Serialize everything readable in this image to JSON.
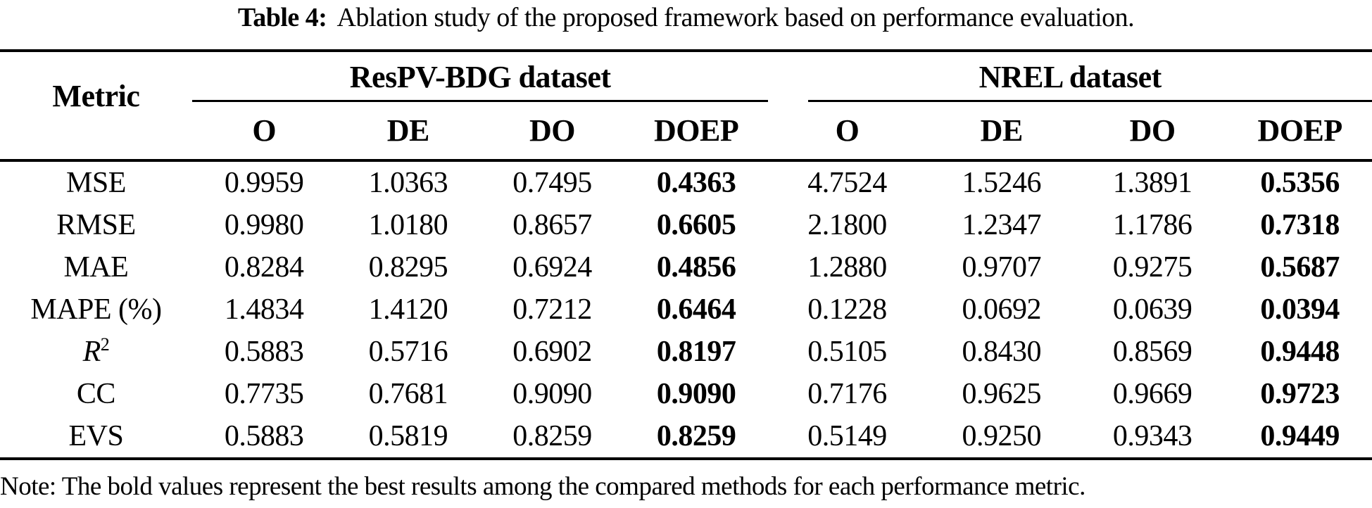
{
  "caption": {
    "label": "Table 4:",
    "text": "Ablation study of the proposed framework based on performance evaluation."
  },
  "table": {
    "metric_header": "Metric",
    "groups": [
      {
        "label": "ResPV-BDG dataset",
        "columns": [
          "O",
          "DE",
          "DO",
          "DOEP"
        ]
      },
      {
        "label": "NREL dataset",
        "columns": [
          "O",
          "DE",
          "DO",
          "DOEP"
        ]
      }
    ],
    "bold_columns": [
      3,
      7
    ],
    "rows": [
      {
        "metric": "MSE",
        "values": [
          "0.9959",
          "1.0363",
          "0.7495",
          "0.4363",
          "4.7524",
          "1.5246",
          "1.3891",
          "0.5356"
        ]
      },
      {
        "metric": "RMSE",
        "values": [
          "0.9980",
          "1.0180",
          "0.8657",
          "0.6605",
          "2.1800",
          "1.2347",
          "1.1786",
          "0.7318"
        ]
      },
      {
        "metric": "MAE",
        "values": [
          "0.8284",
          "0.8295",
          "0.6924",
          "0.4856",
          "1.2880",
          "0.9707",
          "0.9275",
          "0.5687"
        ]
      },
      {
        "metric": "MAPE (%)",
        "values": [
          "1.4834",
          "1.4120",
          "0.7212",
          "0.6464",
          "0.1228",
          "0.0692",
          "0.0639",
          "0.0394"
        ]
      },
      {
        "metric": "R",
        "metric_sup": "2",
        "metric_italic": true,
        "values": [
          "0.5883",
          "0.5716",
          "0.6902",
          "0.8197",
          "0.5105",
          "0.8430",
          "0.8569",
          "0.9448"
        ]
      },
      {
        "metric": "CC",
        "values": [
          "0.7735",
          "0.7681",
          "0.9090",
          "0.9090",
          "0.7176",
          "0.9625",
          "0.9669",
          "0.9723"
        ]
      },
      {
        "metric": "EVS",
        "values": [
          "0.5883",
          "0.5819",
          "0.8259",
          "0.8259",
          "0.5149",
          "0.9250",
          "0.9343",
          "0.9449"
        ]
      }
    ]
  },
  "note": "Note: The bold values represent the best results among the compared methods for each performance metric."
}
